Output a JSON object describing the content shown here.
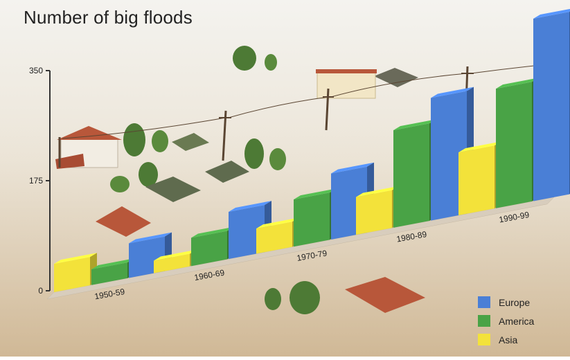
{
  "chart_data": {
    "type": "bar",
    "title": "Number of big floods",
    "categories": [
      "1950-59",
      "1960-69",
      "1970-79",
      "1980-89",
      "1990-99"
    ],
    "series": [
      {
        "name": "Asia",
        "values": [
          45,
          20,
          40,
          60,
          100
        ]
      },
      {
        "name": "America",
        "values": [
          25,
          45,
          75,
          155,
          190
        ]
      },
      {
        "name": "Europe",
        "values": [
          55,
          75,
          105,
          195,
          290
        ]
      }
    ],
    "yticks": [
      0,
      175,
      350
    ],
    "ylim": [
      0,
      350
    ],
    "legend_position": "bottom-right",
    "colors": {
      "Europe": "#4a7fd6",
      "America": "#49a346",
      "Asia": "#f3e23a"
    }
  }
}
